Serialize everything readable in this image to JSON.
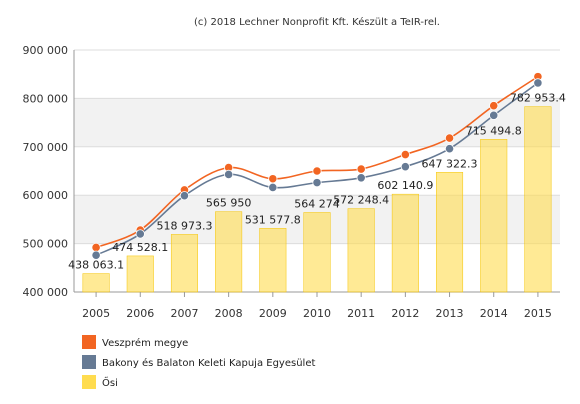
{
  "credit": "(c) 2018 Lechner Nonprofit Kft. Készült a TeIR-rel.",
  "chart_data": {
    "type": "bar",
    "title": "",
    "xlabel": "",
    "ylabel": "",
    "categories": [
      "2005",
      "2006",
      "2007",
      "2008",
      "2009",
      "2010",
      "2011",
      "2012",
      "2013",
      "2014",
      "2015"
    ],
    "ylim": [
      400000,
      900000
    ],
    "yticks": [
      400000,
      500000,
      600000,
      700000,
      800000,
      900000
    ],
    "ytick_labels": [
      "400 000",
      "500 000",
      "600 000",
      "700 000",
      "800 000",
      "900 000"
    ],
    "grid": true,
    "legend_position": "bottom-left",
    "series": [
      {
        "name": "Veszprém megye",
        "type": "line",
        "color": "#f26522",
        "values": [
          492000,
          528000,
          611000,
          657000,
          634000,
          650000,
          654000,
          684000,
          718000,
          785000,
          845000
        ]
      },
      {
        "name": "Bakony és Balaton Keleti Kapuja Egyesület",
        "type": "line",
        "color": "#667a94",
        "values": [
          476000,
          520000,
          599000,
          643000,
          616000,
          626000,
          636000,
          659000,
          696000,
          765000,
          832000
        ]
      },
      {
        "name": "Ősi",
        "type": "bar",
        "color": "#ffdc4f",
        "values": [
          438063.1,
          474528.1,
          518973.3,
          565950,
          531577.8,
          564274.0,
          572248.4,
          602140.9,
          647322.3,
          715494.8,
          782953.4
        ],
        "labels": [
          "438 063.1",
          "474 528.1",
          "518 973.3",
          "565 950",
          "531 577.8",
          "564 274",
          "572 248.4",
          "602 140.9",
          "647 322.3",
          "715 494.8",
          "782 953.4"
        ]
      }
    ]
  }
}
